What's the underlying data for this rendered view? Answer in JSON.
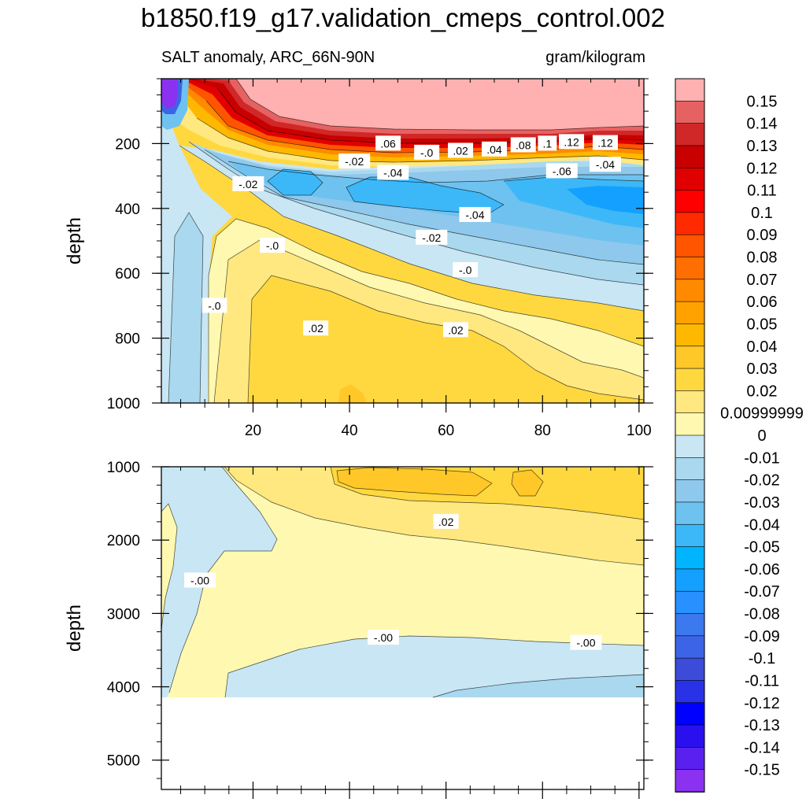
{
  "chart_data": {
    "type": "heatmap",
    "title": "b1850.f19_g17.validation_cmeps_control.002",
    "subtitle_left": "SALT anomaly, ARC_66N-90N",
    "subtitle_right": "gram/kilogram",
    "ylabel": "depth",
    "xlim": [
      1,
      101
    ],
    "x_ticks": [
      "20",
      "40",
      "60",
      "80",
      "100"
    ],
    "panels": [
      {
        "name": "upper",
        "ylim": [
          0,
          1000
        ],
        "y_ticks": [
          "200",
          "400",
          "600",
          "800",
          "1000"
        ],
        "contour_labels": [
          {
            "text": ".06",
            "x": 48,
            "y": 200
          },
          {
            "text": "-.0",
            "x": 56,
            "y": 228
          },
          {
            "text": ".02",
            "x": 63,
            "y": 222
          },
          {
            "text": ".04",
            "x": 70,
            "y": 218
          },
          {
            "text": ".08",
            "x": 76,
            "y": 205
          },
          {
            "text": ".1",
            "x": 81,
            "y": 200
          },
          {
            "text": ".12",
            "x": 86,
            "y": 195
          },
          {
            "text": ".12",
            "x": 93,
            "y": 198
          },
          {
            "text": "-.02",
            "x": 41,
            "y": 255
          },
          {
            "text": "-.04",
            "x": 49,
            "y": 290
          },
          {
            "text": "-.06",
            "x": 84,
            "y": 285
          },
          {
            "text": "-.04",
            "x": 93,
            "y": 265
          },
          {
            "text": "-.02",
            "x": 19,
            "y": 325
          },
          {
            "text": "-.04",
            "x": 66,
            "y": 420
          },
          {
            "text": "-.02",
            "x": 57,
            "y": 490
          },
          {
            "text": "-.0",
            "x": 24,
            "y": 515
          },
          {
            "text": "-.0",
            "x": 64,
            "y": 590
          },
          {
            "text": "-.0",
            "x": 12,
            "y": 700
          },
          {
            "text": ".02",
            "x": 33,
            "y": 770
          },
          {
            "text": ".02",
            "x": 62,
            "y": 775
          }
        ]
      },
      {
        "name": "lower",
        "ylim": [
          1000,
          5400
        ],
        "y_ticks": [
          "1000",
          "2000",
          "3000",
          "4000",
          "5000"
        ],
        "contour_labels": [
          {
            "text": ".02",
            "x": 60,
            "y": 1750
          },
          {
            "text": "-.00",
            "x": 9,
            "y": 2550
          },
          {
            "text": "-.00",
            "x": 47,
            "y": 3330
          },
          {
            "text": "-.00",
            "x": 89,
            "y": 3400
          }
        ]
      }
    ],
    "colorbar": {
      "labels": [
        "0.15",
        "0.14",
        "0.13",
        "0.12",
        "0.11",
        "0.1",
        "0.09",
        "0.08",
        "0.07",
        "0.06",
        "0.05",
        "0.04",
        "0.03",
        "0.02",
        "0.00999999",
        "0",
        "-0.01",
        "-0.02",
        "-0.03",
        "-0.04",
        "-0.05",
        "-0.06",
        "-0.07",
        "-0.08",
        "-0.09",
        "-0.1",
        "-0.11",
        "-0.12",
        "-0.13",
        "-0.14",
        "-0.15"
      ],
      "colors": [
        "#ffb0b0",
        "#e66262",
        "#d02828",
        "#c80000",
        "#e00000",
        "#ff0000",
        "#ff2a00",
        "#ff5500",
        "#ff6e00",
        "#ff8a00",
        "#ffa200",
        "#ffb800",
        "#ffc828",
        "#ffd840",
        "#ffe880",
        "#fff8b0",
        "#c8e6f4",
        "#aad8ee",
        "#8ec8ec",
        "#6ec2f0",
        "#3cb8f8",
        "#00b4ff",
        "#14a0ff",
        "#2890ff",
        "#3c78ee",
        "#3c64e6",
        "#3c4cd8",
        "#2a32e8",
        "#0000ff",
        "#2a10ee",
        "#5a20ee",
        "#8a32f0"
      ]
    }
  }
}
